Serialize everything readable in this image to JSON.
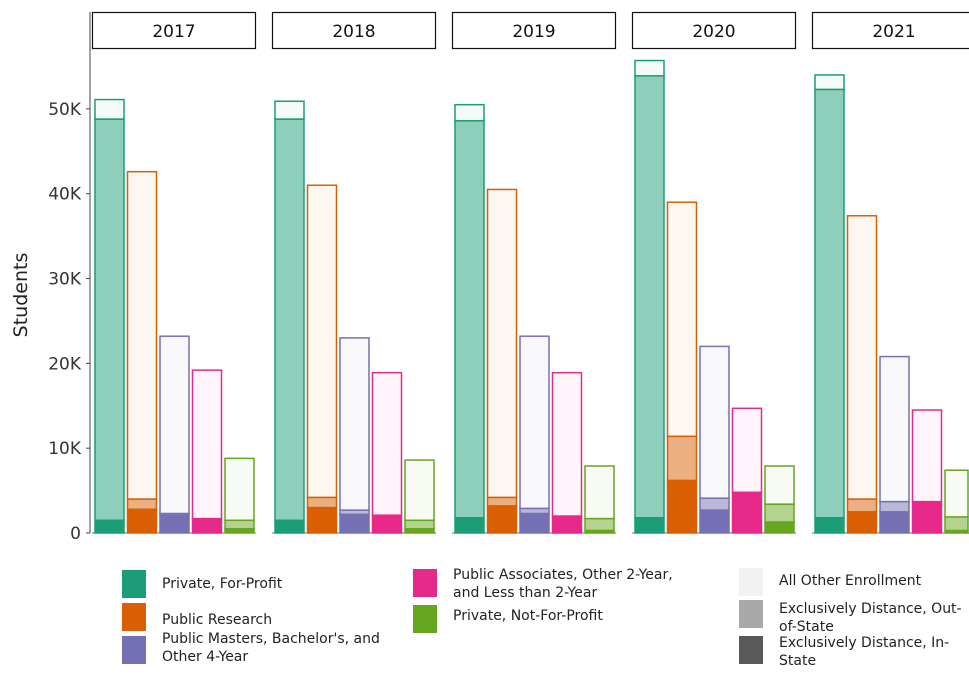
{
  "chart_data": {
    "type": "bar",
    "facets": [
      "2017",
      "2018",
      "2019",
      "2020",
      "2021"
    ],
    "ylabel": "Students",
    "y_ticks": [
      "0",
      "10K",
      "20K",
      "30K",
      "40K",
      "50K"
    ],
    "ylim": [
      0,
      56000
    ],
    "grid": false,
    "stack_segments": [
      "Exclusively Distance, In-State",
      "Exclusively Distance, Out-of-State",
      "All Other Enrollment"
    ],
    "series": [
      {
        "name": "Private, For-Profit",
        "color": "#1b9e77",
        "values": {
          "2017": {
            "in_state": 1500,
            "out_of_state": 47300,
            "all_other": 2300
          },
          "2018": {
            "in_state": 1500,
            "out_of_state": 47300,
            "all_other": 2100
          },
          "2019": {
            "in_state": 1800,
            "out_of_state": 46800,
            "all_other": 1900
          },
          "2020": {
            "in_state": 1800,
            "out_of_state": 52100,
            "all_other": 1800
          },
          "2021": {
            "in_state": 1800,
            "out_of_state": 50500,
            "all_other": 1700
          }
        }
      },
      {
        "name": "Public Research",
        "color": "#d95f02",
        "values": {
          "2017": {
            "in_state": 2800,
            "out_of_state": 1200,
            "all_other": 38600
          },
          "2018": {
            "in_state": 3000,
            "out_of_state": 1200,
            "all_other": 36800
          },
          "2019": {
            "in_state": 3200,
            "out_of_state": 1000,
            "all_other": 36300
          },
          "2020": {
            "in_state": 6200,
            "out_of_state": 5200,
            "all_other": 27600
          },
          "2021": {
            "in_state": 2500,
            "out_of_state": 1500,
            "all_other": 33400
          }
        }
      },
      {
        "name": "Public Masters, Bachelor's, and Other 4-Year",
        "color": "#7570b3",
        "values": {
          "2017": {
            "in_state": 2100,
            "out_of_state": 200,
            "all_other": 20900
          },
          "2018": {
            "in_state": 2200,
            "out_of_state": 500,
            "all_other": 20300
          },
          "2019": {
            "in_state": 2300,
            "out_of_state": 600,
            "all_other": 20300
          },
          "2020": {
            "in_state": 2700,
            "out_of_state": 1400,
            "all_other": 17900
          },
          "2021": {
            "in_state": 2500,
            "out_of_state": 1200,
            "all_other": 17100
          }
        }
      },
      {
        "name": "Public Associates, Other 2-Year, and Less than 2-Year",
        "color": "#e7298a",
        "values": {
          "2017": {
            "in_state": 1700,
            "out_of_state": 0,
            "all_other": 17500
          },
          "2018": {
            "in_state": 2100,
            "out_of_state": 0,
            "all_other": 16800
          },
          "2019": {
            "in_state": 2000,
            "out_of_state": 0,
            "all_other": 16900
          },
          "2020": {
            "in_state": 4800,
            "out_of_state": 0,
            "all_other": 9900
          },
          "2021": {
            "in_state": 3700,
            "out_of_state": 0,
            "all_other": 10800
          }
        }
      },
      {
        "name": "Private, Not-For-Profit",
        "color": "#66a61e",
        "values": {
          "2017": {
            "in_state": 500,
            "out_of_state": 1000,
            "all_other": 7300
          },
          "2018": {
            "in_state": 500,
            "out_of_state": 1000,
            "all_other": 7100
          },
          "2019": {
            "in_state": 300,
            "out_of_state": 1400,
            "all_other": 6200
          },
          "2020": {
            "in_state": 1300,
            "out_of_state": 2100,
            "all_other": 4500
          },
          "2021": {
            "in_state": 300,
            "out_of_state": 1600,
            "all_other": 5500
          }
        }
      }
    ]
  },
  "legend": {
    "sector_items": [
      {
        "label": "Private, For-Profit",
        "color": "#1b9e77"
      },
      {
        "label": "Public Research",
        "color": "#d95f02"
      },
      {
        "label": "Public Masters, Bachelor's, and Other 4-Year",
        "color": "#7570b3"
      },
      {
        "label": "Public Associates, Other 2-Year, and Less than 2-Year",
        "color": "#e7298a"
      },
      {
        "label": "Private, Not-For-Profit",
        "color": "#66a61e"
      }
    ],
    "segment_items": [
      {
        "label": "All Other Enrollment",
        "color": "#f2f2f2"
      },
      {
        "label": "Exclusively Distance, Out-of-State",
        "color": "#a8a8a8"
      },
      {
        "label": "Exclusively Distance, In-State",
        "color": "#595959"
      }
    ]
  }
}
